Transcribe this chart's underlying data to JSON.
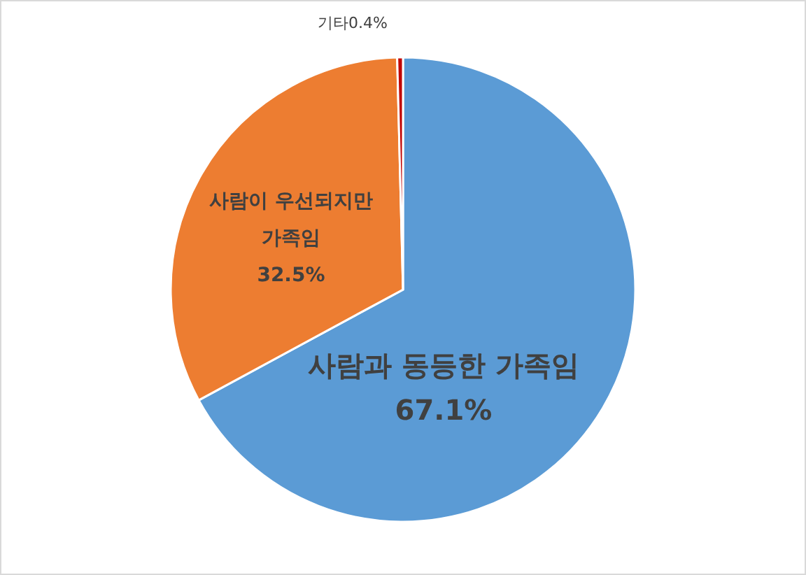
{
  "chart_data": {
    "type": "pie",
    "categories": [
      "사람과 동등한 가족임",
      "사람이 우선되지만 가족임",
      "기타"
    ],
    "values": [
      67.1,
      32.5,
      0.4
    ],
    "value_labels": [
      "67.1%",
      "32.5%",
      "0.4%"
    ],
    "colors": [
      "#5b9bd5",
      "#ed7d31",
      "#c00000"
    ]
  }
}
